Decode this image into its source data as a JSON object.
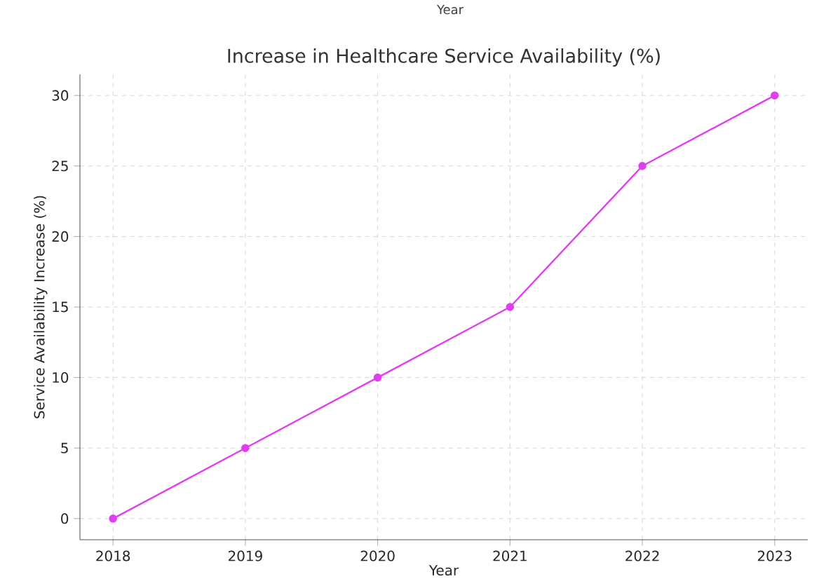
{
  "chart_data": {
    "type": "line",
    "title": "Increase in Healthcare Service Availability (%)",
    "xlabel": "Year",
    "ylabel": "Service Availability Increase (%)",
    "annotations": [
      "Year"
    ],
    "x": [
      2018,
      2019,
      2020,
      2021,
      2022,
      2023
    ],
    "series": [
      {
        "color": "#e03ef0",
        "values": [
          0,
          5,
          10,
          15,
          25,
          30
        ]
      }
    ],
    "xlim": [
      2017.75,
      2023.25
    ],
    "ylim": [
      -1.5,
      31.5
    ],
    "xticks": [
      2018,
      2019,
      2020,
      2021,
      2022,
      2023
    ],
    "yticks": [
      0,
      5,
      10,
      15,
      20,
      25,
      30
    ],
    "grid": true,
    "marker": "circle",
    "line_style": "solid"
  }
}
